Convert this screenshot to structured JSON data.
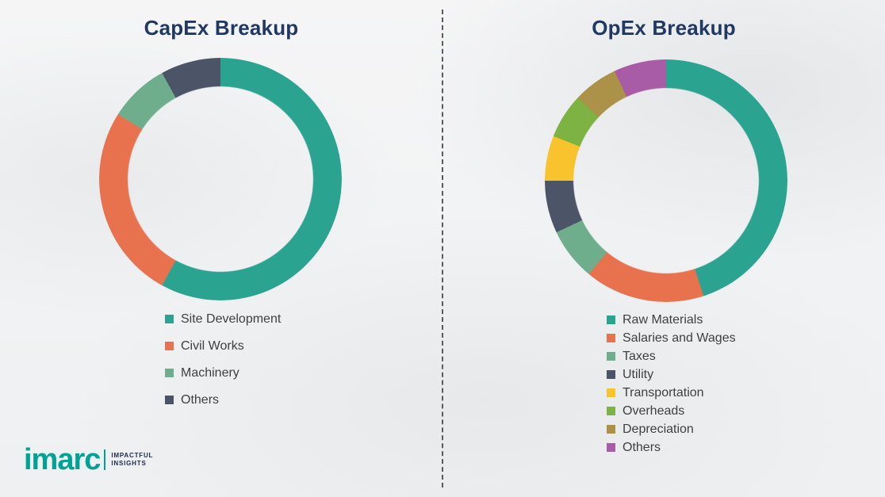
{
  "colors": {
    "title": "#1f3864",
    "legend_text": "#3f3f3f",
    "divider": "#5a5a5a",
    "background": "#f2f3f4",
    "brand_teal": "#00a295"
  },
  "chart_data": [
    {
      "type": "pie",
      "donut": true,
      "title": "CapEx Breakup",
      "labels": [
        "Site Development",
        "Civil Works",
        "Machinery",
        "Others"
      ],
      "values": [
        58,
        26,
        8,
        8
      ],
      "colors": [
        "#2aa491",
        "#e8714e",
        "#6fae8d",
        "#4c5468"
      ],
      "unit": "percent",
      "legend_position": "bottom"
    },
    {
      "type": "pie",
      "donut": true,
      "title": "OpEx Breakup",
      "labels": [
        "Raw Materials",
        "Salaries and Wages",
        "Taxes",
        "Utility",
        "Transportation",
        "Overheads",
        "Depreciation",
        "Others"
      ],
      "values": [
        45,
        16,
        7,
        7,
        6,
        6,
        6,
        7
      ],
      "colors": [
        "#2aa491",
        "#e8714e",
        "#6fae8d",
        "#4c5468",
        "#f9c32d",
        "#7cb342",
        "#ab9248",
        "#a95ca6"
      ],
      "unit": "percent",
      "legend_position": "bottom"
    }
  ],
  "logo": {
    "brand": "imarc",
    "tagline_line1": "IMPACTFUL",
    "tagline_line2": "INSIGHTS"
  }
}
